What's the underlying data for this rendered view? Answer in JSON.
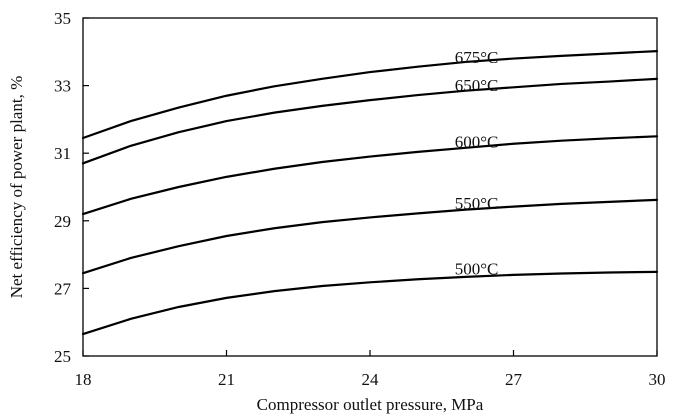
{
  "chart_data": {
    "type": "line",
    "title": "",
    "xlabel": "Compressor outlet pressure, MPa",
    "ylabel": "Net efficiency of power plant, %",
    "xlim": [
      18,
      30
    ],
    "ylim": [
      25,
      35
    ],
    "x_ticks": [
      "18",
      "21",
      "24",
      "27",
      "30"
    ],
    "y_ticks": [
      "25",
      "27",
      "29",
      "31",
      "33",
      "35"
    ],
    "grid": false,
    "legend": "none",
    "series": [
      {
        "name": "675°C",
        "x": [
          18,
          19,
          20,
          21,
          22,
          23,
          24,
          25,
          26,
          27,
          28,
          29,
          30
        ],
        "y": [
          31.45,
          31.95,
          32.35,
          32.7,
          32.98,
          33.2,
          33.4,
          33.56,
          33.7,
          33.8,
          33.88,
          33.95,
          34.02
        ]
      },
      {
        "name": "650°C",
        "x": [
          18,
          19,
          20,
          21,
          22,
          23,
          24,
          25,
          26,
          27,
          28,
          29,
          30
        ],
        "y": [
          30.7,
          31.22,
          31.62,
          31.95,
          32.2,
          32.4,
          32.57,
          32.72,
          32.85,
          32.95,
          33.05,
          33.12,
          33.2
        ]
      },
      {
        "name": "600°C",
        "x": [
          18,
          19,
          20,
          21,
          22,
          23,
          24,
          25,
          26,
          27,
          28,
          29,
          30
        ],
        "y": [
          29.2,
          29.65,
          30.0,
          30.3,
          30.54,
          30.74,
          30.9,
          31.04,
          31.16,
          31.28,
          31.37,
          31.44,
          31.5
        ]
      },
      {
        "name": "550°C",
        "x": [
          18,
          19,
          20,
          21,
          22,
          23,
          24,
          25,
          26,
          27,
          28,
          29,
          30
        ],
        "y": [
          27.45,
          27.9,
          28.25,
          28.55,
          28.78,
          28.96,
          29.1,
          29.22,
          29.33,
          29.42,
          29.5,
          29.56,
          29.62
        ]
      },
      {
        "name": "500°C",
        "x": [
          18,
          19,
          20,
          21,
          22,
          23,
          24,
          25,
          26,
          27,
          28,
          29,
          30
        ],
        "y": [
          25.65,
          26.1,
          26.45,
          26.72,
          26.92,
          27.07,
          27.18,
          27.27,
          27.34,
          27.4,
          27.44,
          27.47,
          27.49
        ]
      }
    ]
  }
}
